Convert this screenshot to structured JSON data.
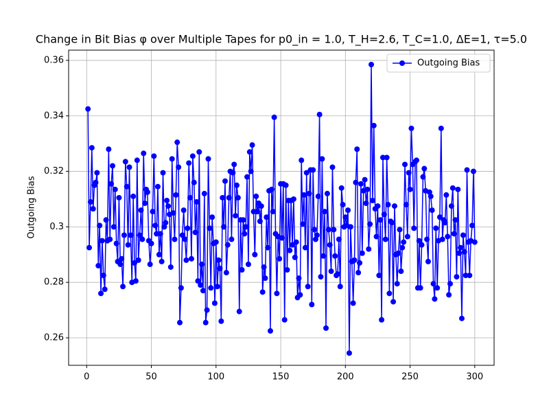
{
  "chart_data": {
    "type": "line",
    "title": "Change in Bit Bias φ over Multiple Tapes for p0_in = 1.0, T_H=2.6, T_C=1.0, ΔE=1, τ=5.0",
    "y_label": "Outgoing Bias",
    "x": [
      1,
      2,
      3,
      4,
      5,
      6,
      7,
      8,
      9,
      10,
      11,
      12,
      13,
      14,
      15,
      16,
      17,
      18,
      19,
      20,
      21,
      22,
      23,
      24,
      25,
      26,
      27,
      28,
      29,
      30,
      31,
      32,
      33,
      34,
      35,
      36,
      37,
      38,
      39,
      40,
      41,
      42,
      43,
      44,
      45,
      46,
      47,
      48,
      49,
      50,
      51,
      52,
      53,
      54,
      55,
      56,
      57,
      58,
      59,
      60,
      61,
      62,
      63,
      64,
      65,
      66,
      67,
      68,
      69,
      70,
      71,
      72,
      73,
      74,
      75,
      76,
      77,
      78,
      79,
      80,
      81,
      82,
      83,
      84,
      85,
      86,
      87,
      88,
      89,
      90,
      91,
      92,
      93,
      94,
      95,
      96,
      97,
      98,
      99,
      100,
      101,
      102,
      103,
      104,
      105,
      106,
      107,
      108,
      109,
      110,
      111,
      112,
      113,
      114,
      115,
      116,
      117,
      118,
      119,
      120,
      121,
      122,
      123,
      124,
      125,
      126,
      127,
      128,
      129,
      130,
      131,
      132,
      133,
      134,
      135,
      136,
      137,
      138,
      139,
      140,
      141,
      142,
      143,
      144,
      145,
      146,
      147,
      148,
      149,
      150,
      151,
      152,
      153,
      154,
      155,
      156,
      157,
      158,
      159,
      160,
      161,
      162,
      163,
      164,
      165,
      166,
      167,
      168,
      169,
      170,
      171,
      172,
      173,
      174,
      175,
      176,
      177,
      178,
      179,
      180,
      181,
      182,
      183,
      184,
      185,
      186,
      187,
      188,
      189,
      190,
      191,
      192,
      193,
      194,
      195,
      196,
      197,
      198,
      199,
      200,
      201,
      202,
      203,
      204,
      205,
      206,
      207,
      208,
      209,
      210,
      211,
      212,
      213,
      214,
      215,
      216,
      217,
      218,
      219,
      220,
      221,
      222,
      223,
      224,
      225,
      226,
      227,
      228,
      229,
      230,
      231,
      232,
      233,
      234,
      235,
      236,
      237,
      238,
      239,
      240,
      241,
      242,
      243,
      244,
      245,
      246,
      247,
      248,
      249,
      250,
      251,
      252,
      253,
      254,
      255,
      256,
      257,
      258,
      259,
      260,
      261,
      262,
      263,
      264,
      265,
      266,
      267,
      268,
      269,
      270,
      271,
      272,
      273,
      274,
      275,
      276,
      277,
      278,
      279,
      280,
      281,
      282,
      283,
      284,
      285,
      286,
      287,
      288,
      289,
      290,
      291,
      292,
      293,
      294,
      295,
      296,
      297,
      298,
      299,
      300
    ],
    "series": [
      {
        "name": "Outgoing Bias",
        "color": "#0000ff",
        "values": [
          0.3425,
          0.2925,
          0.309,
          0.3285,
          0.3065,
          0.315,
          0.316,
          0.3195,
          0.286,
          0.3005,
          0.276,
          0.295,
          0.2825,
          0.2775,
          0.3025,
          0.295,
          0.328,
          0.2955,
          0.3155,
          0.322,
          0.3,
          0.3135,
          0.294,
          0.2875,
          0.3105,
          0.2865,
          0.2885,
          0.2785,
          0.297,
          0.3235,
          0.3145,
          0.2935,
          0.3215,
          0.297,
          0.28,
          0.311,
          0.287,
          0.2805,
          0.324,
          0.288,
          0.297,
          0.306,
          0.2955,
          0.3265,
          0.3085,
          0.3135,
          0.3125,
          0.295,
          0.2865,
          0.294,
          0.3055,
          0.3255,
          0.3005,
          0.2975,
          0.3145,
          0.29,
          0.2975,
          0.2875,
          0.3195,
          0.3,
          0.3015,
          0.3095,
          0.3075,
          0.3045,
          0.2855,
          0.3245,
          0.305,
          0.2955,
          0.3115,
          0.3305,
          0.3215,
          0.2655,
          0.278,
          0.297,
          0.306,
          0.2955,
          0.288,
          0.2995,
          0.323,
          0.3105,
          0.2885,
          0.3255,
          0.316,
          0.298,
          0.309,
          0.2805,
          0.327,
          0.279,
          0.2865,
          0.277,
          0.312,
          0.2655,
          0.27,
          0.3245,
          0.2995,
          0.278,
          0.3035,
          0.294,
          0.2725,
          0.2945,
          0.2785,
          0.288,
          0.285,
          0.266,
          0.3105,
          0.3,
          0.3165,
          0.2835,
          0.2935,
          0.3105,
          0.32,
          0.2955,
          0.3195,
          0.3225,
          0.304,
          0.315,
          0.3105,
          0.2695,
          0.3025,
          0.2845,
          0.3025,
          0.2975,
          0.3,
          0.318,
          0.2865,
          0.327,
          0.32,
          0.3295,
          0.3055,
          0.29,
          0.311,
          0.3055,
          0.3085,
          0.302,
          0.3075,
          0.2765,
          0.2855,
          0.2815,
          0.3035,
          0.2925,
          0.313,
          0.2625,
          0.3135,
          0.3055,
          0.3395,
          0.2975,
          0.276,
          0.2965,
          0.2885,
          0.3155,
          0.296,
          0.3155,
          0.2665,
          0.315,
          0.2845,
          0.3095,
          0.2915,
          0.3095,
          0.2935,
          0.31,
          0.289,
          0.2945,
          0.2745,
          0.2815,
          0.2755,
          0.324,
          0.301,
          0.3115,
          0.2925,
          0.3195,
          0.2785,
          0.312,
          0.3205,
          0.272,
          0.3205,
          0.299,
          0.2955,
          0.297,
          0.311,
          0.3405,
          0.282,
          0.3245,
          0.2895,
          0.3055,
          0.2635,
          0.312,
          0.299,
          0.2935,
          0.284,
          0.3215,
          0.299,
          0.2895,
          0.2825,
          0.283,
          0.2955,
          0.2785,
          0.314,
          0.308,
          0.3,
          0.3035,
          0.3005,
          0.306,
          0.2545,
          0.3,
          0.2875,
          0.2725,
          0.288,
          0.316,
          0.328,
          0.2835,
          0.287,
          0.3155,
          0.2905,
          0.313,
          0.317,
          0.3085,
          0.3135,
          0.292,
          0.301,
          0.3585,
          0.3095,
          0.3365,
          0.3065,
          0.2965,
          0.3075,
          0.2825,
          0.3025,
          0.2665,
          0.325,
          0.3045,
          0.2955,
          0.325,
          0.308,
          0.276,
          0.302,
          0.3015,
          0.273,
          0.3075,
          0.29,
          0.2795,
          0.2905,
          0.299,
          0.284,
          0.2925,
          0.2945,
          0.3225,
          0.308,
          0.2965,
          0.3195,
          0.3135,
          0.3355,
          0.3225,
          0.2995,
          0.3235,
          0.324,
          0.278,
          0.295,
          0.278,
          0.2935,
          0.318,
          0.321,
          0.313,
          0.2955,
          0.2875,
          0.3125,
          0.311,
          0.306,
          0.2795,
          0.274,
          0.2995,
          0.278,
          0.295,
          0.3035,
          0.3355,
          0.2955,
          0.3025,
          0.3015,
          0.3115,
          0.2965,
          0.2755,
          0.2795,
          0.3075,
          0.314,
          0.2975,
          0.3025,
          0.282,
          0.3135,
          0.2905,
          0.2925,
          0.267,
          0.297,
          0.291,
          0.2825,
          0.3205,
          0.2945,
          0.2825,
          0.295,
          0.3005,
          0.32,
          0.2945
        ]
      }
    ],
    "xlim": [
      -13.95,
      314.95
    ],
    "ylim": [
      0.2501,
      0.3637
    ],
    "xticks": [
      0,
      50,
      100,
      150,
      200,
      250,
      300
    ],
    "yticks": [
      0.26,
      0.28,
      0.3,
      0.32,
      0.34,
      0.36
    ],
    "grid": true,
    "legend": "upper right"
  }
}
